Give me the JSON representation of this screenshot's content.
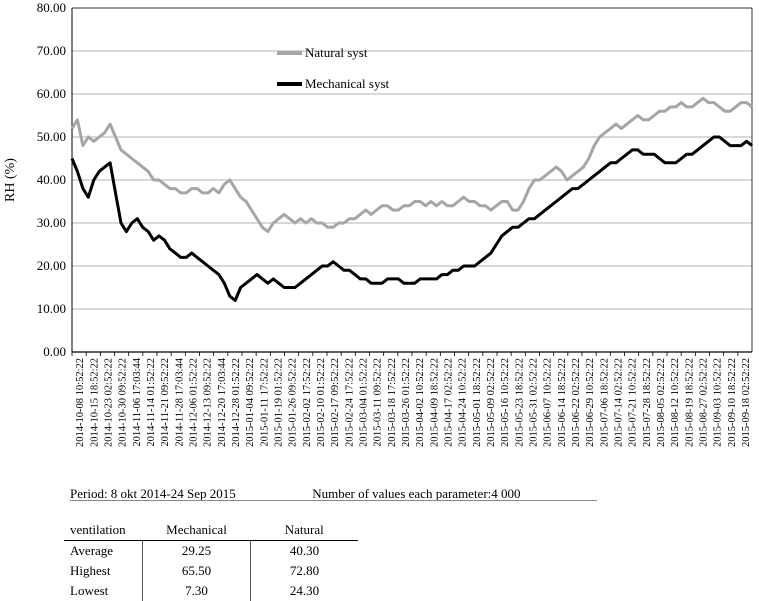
{
  "chart_data": {
    "type": "line",
    "ylabel": "RH (%)",
    "xlabel": "",
    "ylim": [
      0,
      80
    ],
    "yticks": [
      "0.00",
      "10.00",
      "20.00",
      "30.00",
      "40.00",
      "50.00",
      "60.00",
      "70.00",
      "80.00"
    ],
    "x_ticks": [
      "2014-10-08 10:52:22",
      "2014-10-15 18:52:22",
      "2014-10-23 02:52:22",
      "2014-10-30 09:52:22",
      "2014-11-06 17:03:44",
      "2014-11-14 01:52:22",
      "2014-11-21 09:52:22",
      "2014-11-28 17:03:44",
      "2014-12-06 01:52:22",
      "2014-12-13 09:52:22",
      "2014-12-20 17:03:44",
      "2014-12-28 01:52:22",
      "2015-01-04 09:52:22",
      "2015-01-11 17:52:22",
      "2015-01-19 01:52:22",
      "2015-01-26 09:52:22",
      "2015-02-02 17:52:22",
      "2015-02-10 01:52:22",
      "2015-02-17 09:52:22",
      "2015-02-24 17:52:22",
      "2015-03-04 01:52:22",
      "2015-03-11 09:52:22",
      "2015-03-18 17:52:22",
      "2015-03-26 01:52:22",
      "2015-04-02 10:52:22",
      "2015-04-09 18:52:22",
      "2015-04-17 02:52:22",
      "2015-04-24 10:52:22",
      "2015-05-01 18:52:22",
      "2015-05-09 02:52:22",
      "2015-05-16 10:52:22",
      "2015-05-23 18:52:22",
      "2015-05-31 02:52:22",
      "2015-06-07 10:52:22",
      "2015-06-14 18:52:22",
      "2015-06-22 02:52:22",
      "2015-06-29 10:52:22",
      "2015-07-06 18:52:22",
      "2015-07-14 02:52:22",
      "2015-07-21 10:52:22",
      "2015-07-28 18:52:22",
      "2015-08-05 02:52:22",
      "2015-08-12 10:52:22",
      "2015-08-19 18:52:22",
      "2015-08-27 02:52:22",
      "2015-09-03 10:52:22",
      "2015-09-10 18:52:22",
      "2015-09-18 02:52:22"
    ],
    "series": [
      {
        "name": "Natural syst",
        "color": "#a6a6a6",
        "values": [
          52,
          54,
          48,
          50,
          49,
          50,
          51,
          53,
          50,
          47,
          46,
          45,
          44,
          43,
          42,
          40,
          40,
          39,
          38,
          38,
          37,
          37,
          38,
          38,
          37,
          37,
          38,
          37,
          39,
          40,
          38,
          36,
          35,
          33,
          31,
          29,
          28,
          30,
          31,
          32,
          31,
          30,
          31,
          30,
          31,
          30,
          30,
          29,
          29,
          30,
          30,
          31,
          31,
          32,
          33,
          32,
          33,
          34,
          34,
          33,
          33,
          34,
          34,
          35,
          35,
          34,
          35,
          34,
          35,
          34,
          34,
          35,
          36,
          35,
          35,
          34,
          34,
          33,
          34,
          35,
          35,
          33,
          33,
          35,
          38,
          40,
          40,
          41,
          42,
          43,
          42,
          40,
          41,
          42,
          43,
          45,
          48,
          50,
          51,
          52,
          53,
          52,
          53,
          54,
          55,
          54,
          54,
          55,
          56,
          56,
          57,
          57,
          58,
          57,
          57,
          58,
          59,
          58,
          58,
          57,
          56,
          56,
          57,
          58,
          58,
          57
        ]
      },
      {
        "name": "Mechanical syst",
        "color": "#000000",
        "values": [
          45,
          42,
          38,
          36,
          40,
          42,
          43,
          44,
          37,
          30,
          28,
          30,
          31,
          29,
          28,
          26,
          27,
          26,
          24,
          23,
          22,
          22,
          23,
          22,
          21,
          20,
          19,
          18,
          16,
          13,
          12,
          15,
          16,
          17,
          18,
          17,
          16,
          17,
          16,
          15,
          15,
          15,
          16,
          17,
          18,
          19,
          20,
          20,
          21,
          20,
          19,
          19,
          18,
          17,
          17,
          16,
          16,
          16,
          17,
          17,
          17,
          16,
          16,
          16,
          17,
          17,
          17,
          17,
          18,
          18,
          19,
          19,
          20,
          20,
          20,
          21,
          22,
          23,
          25,
          27,
          28,
          29,
          29,
          30,
          31,
          31,
          32,
          33,
          34,
          35,
          36,
          37,
          38,
          38,
          39,
          40,
          41,
          42,
          43,
          44,
          44,
          45,
          46,
          47,
          47,
          46,
          46,
          46,
          45,
          44,
          44,
          44,
          45,
          46,
          46,
          47,
          48,
          49,
          50,
          50,
          49,
          48,
          48,
          48,
          49,
          48
        ]
      }
    ],
    "legend_placement": "top-center"
  },
  "summary": {
    "period": "Period: 8 okt 2014-24 Sep 2015",
    "count": "Number of values each parameter:4 000"
  },
  "stats_table": {
    "header": [
      "ventilation",
      "Mechanical",
      "Natural"
    ],
    "rows": [
      {
        "label": "Average",
        "mechanical": "29.25",
        "natural": "40.30"
      },
      {
        "label": "Highest",
        "mechanical": "65.50",
        "natural": "72.80"
      },
      {
        "label": "Lowest",
        "mechanical": "7.30",
        "natural": "24.30"
      }
    ]
  }
}
